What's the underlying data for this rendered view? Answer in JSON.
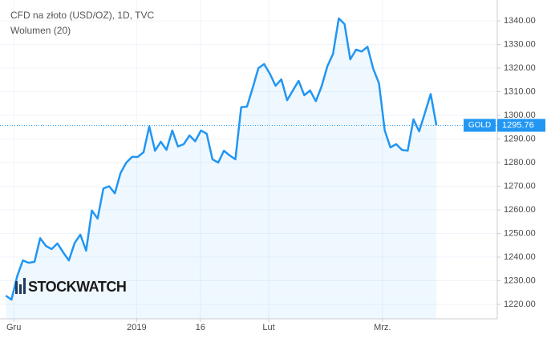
{
  "chart_data": {
    "type": "line",
    "title": "CFD na złoto (USD/OZ), 1D, TVC",
    "subtitle": "Wolumen (20)",
    "watermark": "STOCKWATCH",
    "series": [
      {
        "name": "GOLD",
        "color": "#2196f3",
        "values": [
          1223.7,
          1222,
          1232,
          1238.6,
          1237.6,
          1238,
          1248,
          1244.7,
          1243.4,
          1245.8,
          1242,
          1238.6,
          1246,
          1249.5,
          1242.7,
          1259.7,
          1256.3,
          1269,
          1270,
          1267,
          1275.6,
          1280,
          1282.4,
          1282.4,
          1284.4,
          1295.3,
          1285,
          1288.8,
          1285.4,
          1293.6,
          1286.8,
          1287.8,
          1291.5,
          1289,
          1293.6,
          1292.2,
          1281.4,
          1280,
          1285,
          1283,
          1281.4,
          1303.4,
          1303.7,
          1311.5,
          1320,
          1321.7,
          1317.6,
          1312.5,
          1315.2,
          1306.4,
          1310.5,
          1314.6,
          1308.5,
          1310.5,
          1306,
          1312.2,
          1320.7,
          1326,
          1341,
          1338.6,
          1323.7,
          1327.8,
          1327,
          1329,
          1319.7,
          1313.6,
          1293.6,
          1286.4,
          1287.8,
          1285.4,
          1285,
          1298.3,
          1293.2,
          1301,
          1309,
          1295.76
        ]
      }
    ],
    "xlim": [
      -1,
      85.6
    ],
    "xticks": [
      {
        "value": 1.4,
        "label": "Gru"
      },
      {
        "value": 22.8,
        "label": "2019"
      },
      {
        "value": 33.9,
        "label": "16"
      },
      {
        "value": 45.8,
        "label": "Lut"
      },
      {
        "value": 65.6,
        "label": "Mrz."
      }
    ],
    "ylim": [
      1213.9,
      1348.8
    ],
    "yticks": [
      {
        "value": 1220,
        "label": "1220.00"
      },
      {
        "value": 1230,
        "label": "1230.00"
      },
      {
        "value": 1240,
        "label": "1240.00"
      },
      {
        "value": 1250,
        "label": "1250.00"
      },
      {
        "value": 1260,
        "label": "1260.00"
      },
      {
        "value": 1270,
        "label": "1270.00"
      },
      {
        "value": 1280,
        "label": "1280.00"
      },
      {
        "value": 1290,
        "label": "1290.00"
      },
      {
        "value": 1300,
        "label": "1300.00"
      },
      {
        "value": 1310,
        "label": "1310.00"
      },
      {
        "value": 1320,
        "label": "1320.00"
      },
      {
        "value": 1330,
        "label": "1330.00"
      },
      {
        "value": 1340,
        "label": "1340.00"
      }
    ],
    "grid": true
  }
}
